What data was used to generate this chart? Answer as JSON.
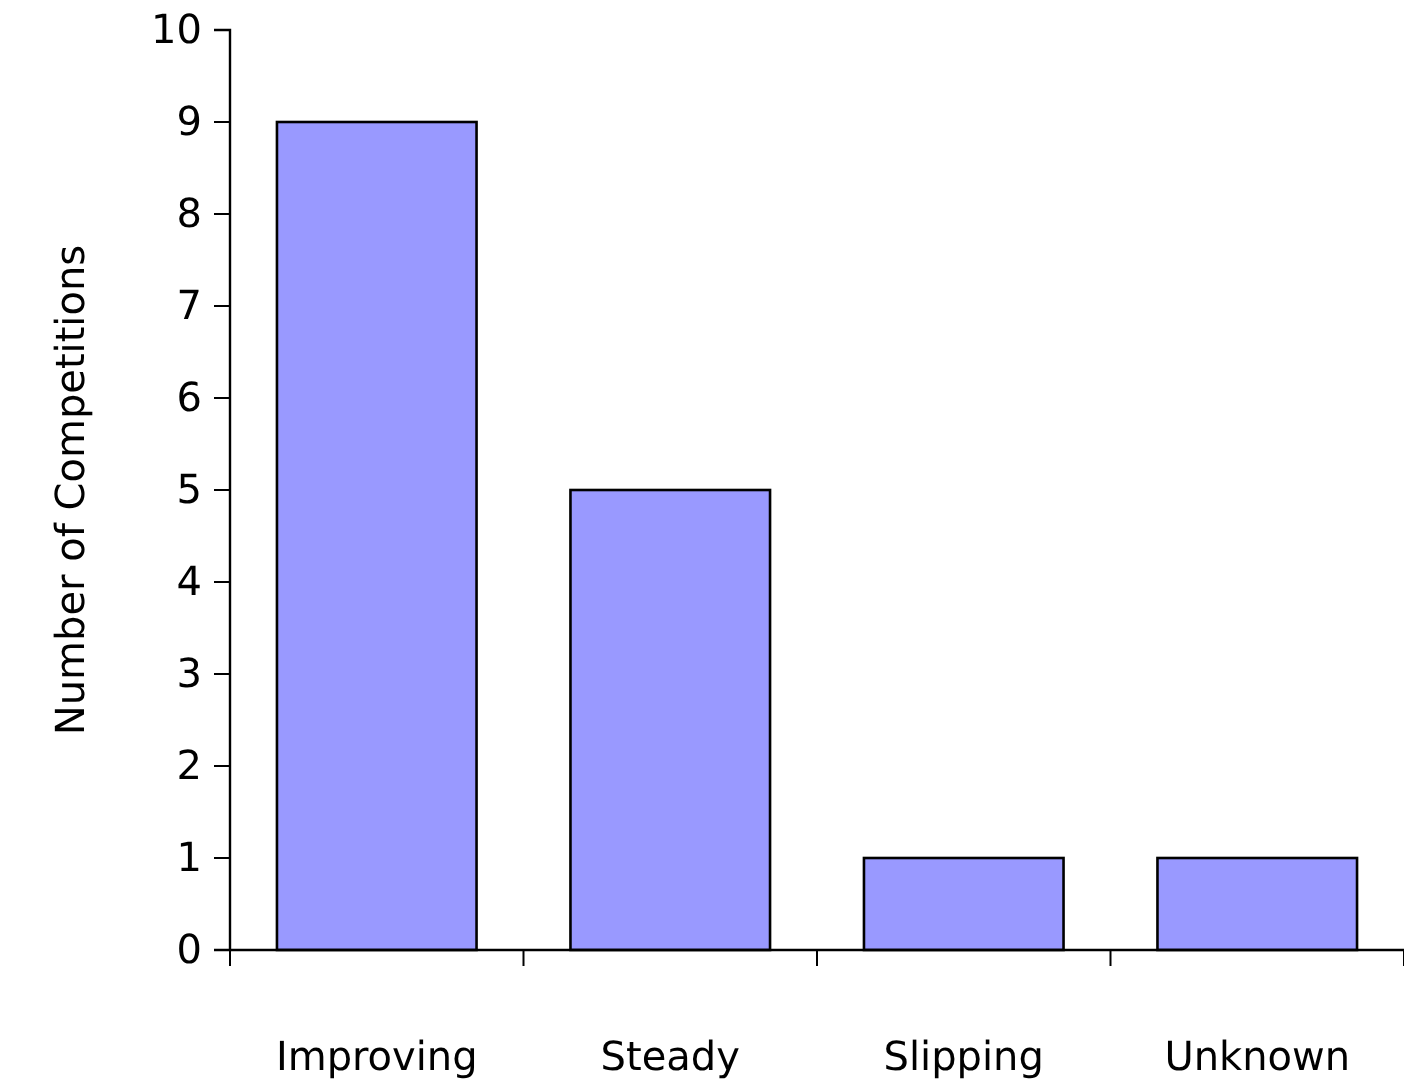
{
  "chart_data": {
    "type": "bar",
    "ylabel": "Number of Competitions",
    "categories": [
      "Improving",
      "Steady",
      "Slipping",
      "Unknown"
    ],
    "values": [
      9,
      5,
      1,
      1
    ],
    "color": "#9999ff",
    "ylim": [
      0,
      10
    ],
    "yticks": [
      0,
      1,
      2,
      3,
      4,
      5,
      6,
      7,
      8,
      9,
      10
    ],
    "grid": false
  }
}
